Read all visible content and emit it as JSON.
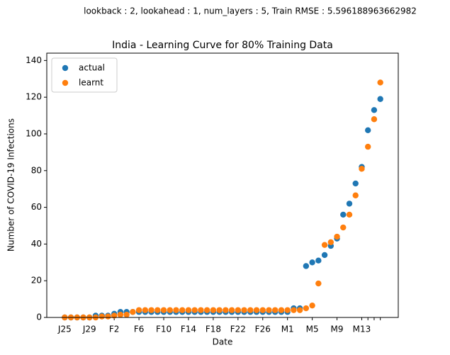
{
  "chart_data": {
    "type": "scatter",
    "suptitle": "lookback : 2, lookahead : 1, num_layers : 5, Train RMSE : 5.596188963662982",
    "title": "India - Learning Curve for 80% Training Data",
    "xlabel": "Date",
    "ylabel": "Number of COVID-19 Infections",
    "categories": [
      "J25",
      null,
      null,
      null,
      "J29",
      null,
      null,
      null,
      "F2",
      null,
      null,
      null,
      "F6",
      null,
      null,
      null,
      "F10",
      null,
      null,
      null,
      "F14",
      null,
      null,
      null,
      "F18",
      null,
      null,
      null,
      "F22",
      null,
      null,
      null,
      "F26",
      null,
      null,
      null,
      "M1",
      null,
      null,
      null,
      "M5",
      null,
      null,
      null,
      "M9",
      null,
      null,
      null,
      "M13",
      null,
      null,
      null
    ],
    "series": [
      {
        "name": "actual",
        "color": "#1f77b4",
        "values": [
          0,
          0,
          0,
          0,
          0,
          1,
          1,
          1,
          2,
          3,
          3,
          3,
          3,
          3,
          3,
          3,
          3,
          3,
          3,
          3,
          3,
          3,
          3,
          3,
          3,
          3,
          3,
          3,
          3,
          3,
          3,
          3,
          3,
          3,
          3,
          3,
          3,
          5,
          5,
          28,
          30,
          31,
          34,
          39,
          43,
          56,
          62,
          73,
          82,
          102,
          113,
          119
        ]
      },
      {
        "name": "learnt",
        "color": "#ff7f0e",
        "values": [
          0,
          0,
          0,
          0,
          0,
          0,
          0.5,
          0.5,
          1,
          1.5,
          1.5,
          3,
          4,
          4,
          4,
          4,
          4,
          4,
          4,
          4,
          4,
          4,
          4,
          4,
          4,
          4,
          4,
          4,
          4,
          4,
          4,
          4,
          4,
          4,
          4,
          4,
          4,
          4,
          4,
          5,
          6.5,
          18.5,
          39.5,
          41,
          44,
          49,
          56,
          66.5,
          81,
          93,
          108,
          128
        ]
      }
    ],
    "ylim": [
      0,
      144
    ],
    "yticks": [
      0,
      20,
      40,
      60,
      80,
      100,
      120,
      140
    ],
    "legend": "upper left"
  }
}
